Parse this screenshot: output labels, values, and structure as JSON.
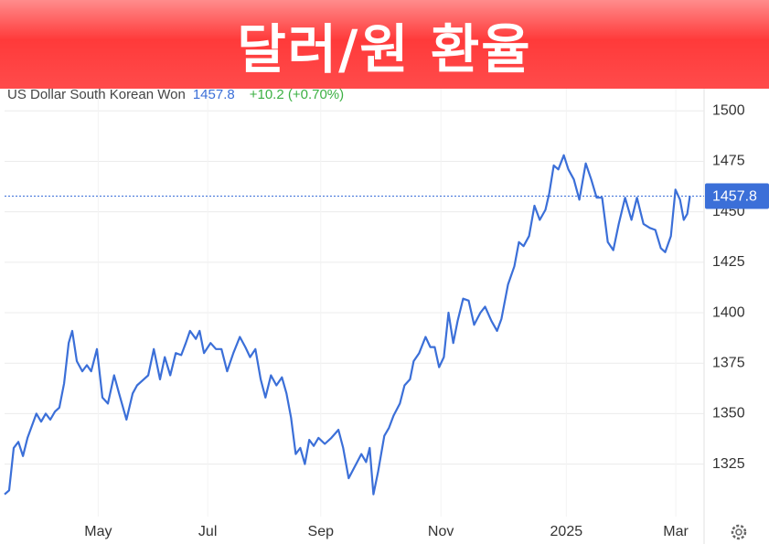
{
  "chart_data": {
    "type": "line",
    "title": "달러/원 환율",
    "change": "+10.2 (+0.70%)",
    "x": [
      0,
      2.6,
      5.2,
      7.8,
      10.4,
      13,
      15.5,
      18,
      20.7,
      23.3,
      25.9,
      28.5,
      31,
      33.7,
      36.3,
      38.3,
      40.9,
      44,
      46.6,
      49,
      52.3,
      55.4,
      58.5,
      62,
      64.8,
      69,
      72.5,
      75,
      78.8,
      81.3,
      84.5,
      88,
      90.7,
      93.8,
      96.9,
      100,
      102.6,
      105,
      108.3,
      110.4,
      112.9,
      116.6,
      119.7,
      122.8,
      126,
      129.5,
      133.2,
      136.3,
      139,
      142,
      145,
      147.7,
      150.8,
      153.9,
      157,
      159.6,
      162.2,
      164.8,
      167.4,
      170,
      172.5,
      175,
      177.7,
      181.3,
      185,
      189,
      191.7,
      194.8,
      198.4,
      202,
      204.7,
      206.7,
      208.8,
      211.4,
      215,
      217.6,
      220.2,
      223.8,
      226.4,
      229.5,
      231.6,
      234.7,
      238.3,
      241,
      243.5,
      246,
      248.7,
      251.3,
      254,
      256.5,
      259.6,
      262.7,
      265.8,
      269.4,
      272,
      275.6,
      278.8,
      281.3,
      285,
      288.6,
      291.2,
      293.8,
      296.9,
      300,
      303,
      306.2,
      308.3,
      310.9,
      313.5,
      316.6,
      319.2,
      322.3,
      325.4,
      329,
      332.1,
      335.2,
      338.3,
      341.5,
      344.6,
      347.7,
      351.3,
      354.9,
      358,
      361.7,
      365.3,
      368.4,
      371.5,
      374,
      377.2,
      379.8,
      382.4,
      384.5,
      386.5,
      388
    ],
    "series": [
      {
        "name": "US Dollar South Korean Won",
        "color": "#3b6fd8",
        "values": [
          1310,
          1312,
          1333,
          1336,
          1329,
          1338,
          1344,
          1350,
          1346,
          1350,
          1347,
          1351,
          1353,
          1365,
          1385,
          1391,
          1376,
          1371,
          1374,
          1371,
          1382,
          1358,
          1355,
          1369,
          1360,
          1347,
          1360,
          1364,
          1367,
          1369,
          1382,
          1367,
          1378,
          1369,
          1380,
          1379,
          1385,
          1391,
          1387,
          1391,
          1380,
          1385,
          1382,
          1382,
          1371,
          1380,
          1388,
          1383,
          1378,
          1382,
          1367,
          1358,
          1369,
          1364,
          1368,
          1360,
          1348,
          1330,
          1333,
          1325,
          1337,
          1334,
          1338,
          1335,
          1338,
          1342,
          1333,
          1318,
          1324,
          1330,
          1326,
          1333,
          1310,
          1321,
          1339,
          1343,
          1349,
          1355,
          1364,
          1367,
          1376,
          1380,
          1388,
          1383,
          1383,
          1373,
          1378,
          1400,
          1385,
          1396,
          1407,
          1406,
          1394,
          1400,
          1403,
          1396,
          1391,
          1397,
          1414,
          1423,
          1435,
          1433,
          1438,
          1453,
          1446,
          1451,
          1459,
          1473,
          1471,
          1478,
          1471,
          1466,
          1456,
          1474,
          1466,
          1457,
          1457,
          1435,
          1431,
          1444,
          1457,
          1446,
          1457,
          1444,
          1442,
          1441,
          1432,
          1430,
          1438,
          1461,
          1456,
          1446,
          1449,
          1457.8
        ]
      }
    ],
    "xlim": [
      0,
      396
    ],
    "xticks": [
      {
        "value": 53,
        "label": "May"
      },
      {
        "value": 115,
        "label": "Jul"
      },
      {
        "value": 179,
        "label": "Sep"
      },
      {
        "value": 247,
        "label": "Nov"
      },
      {
        "value": 318,
        "label": "2025"
      },
      {
        "value": 380,
        "label": "Mar"
      }
    ],
    "ylim": [
      1299,
      1511
    ],
    "yticks": [
      1325,
      1350,
      1375,
      1400,
      1425,
      1450,
      1475,
      1500
    ],
    "grid": true,
    "change_color": "#3cb043"
  }
}
